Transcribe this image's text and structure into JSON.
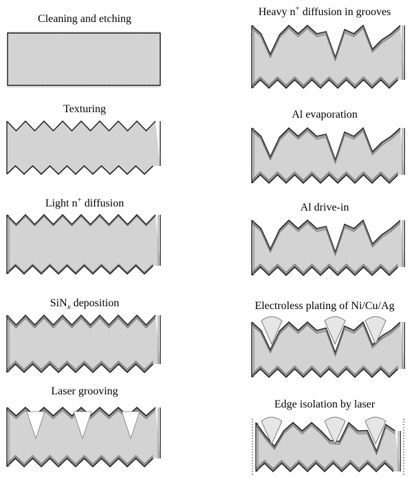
{
  "steps": [
    {
      "id": "cleaning",
      "label": "Cleaning and etching"
    },
    {
      "id": "texturing",
      "label": "Texturing"
    },
    {
      "id": "light_diffusion",
      "label_pre": "Light n",
      "label_sup": "+",
      "label_post": " diffusion"
    },
    {
      "id": "sinx",
      "label_pre": "SiN",
      "label_sub": "x",
      "label_post": " deposition"
    },
    {
      "id": "laser_grooving",
      "label": "Laser grooving"
    },
    {
      "id": "heavy_diffusion",
      "label_pre": "Heavy n",
      "label_sup": "+",
      "label_post": " diffusion in grooves"
    },
    {
      "id": "al_evaporation",
      "label": "Al evaporation"
    },
    {
      "id": "al_drive_in",
      "label": "Al drive-in"
    },
    {
      "id": "plating",
      "label": "Electroless plating of Ni/Cu/Ag"
    },
    {
      "id": "edge_isolation",
      "label": "Edge isolation by laser"
    }
  ],
  "colors": {
    "wafer_fill": "#d3d3d3",
    "outline": "#222222",
    "layer": "#777777",
    "contact_fill": "#e6e6e6"
  }
}
